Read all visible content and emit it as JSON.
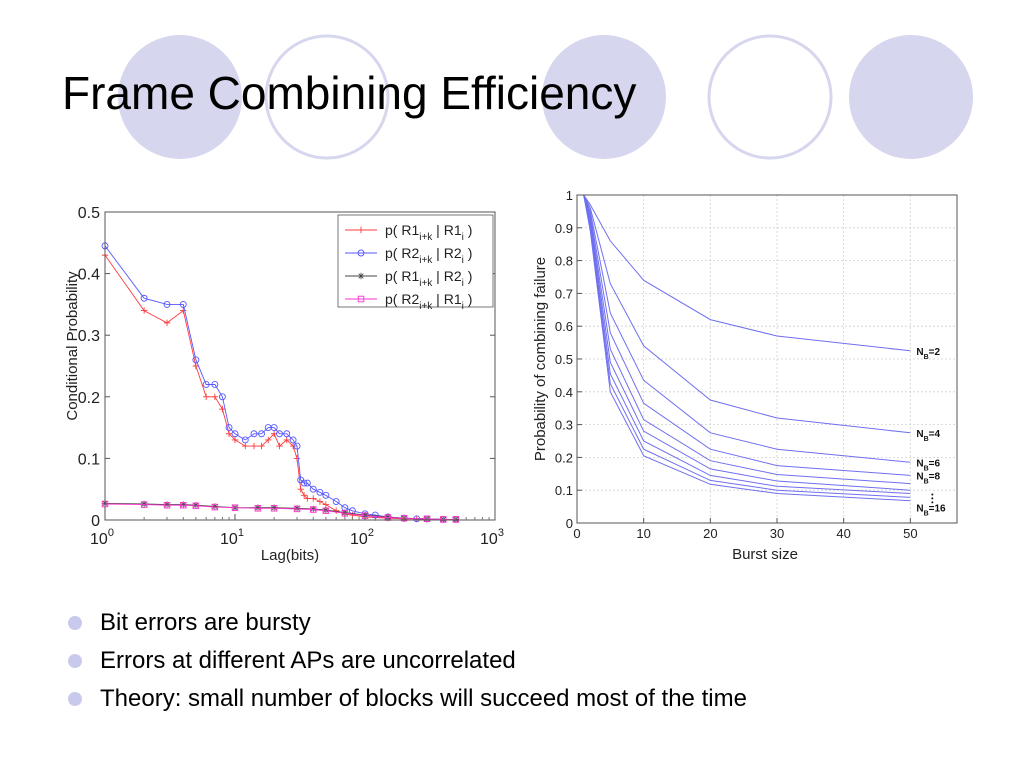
{
  "slide": {
    "title": "Frame Combining Efficiency",
    "accent_color": "#d4d4ee",
    "bullets": [
      "Bit errors are bursty",
      "Errors at different APs are uncorrelated",
      "Theory: small number of blocks will succeed most of the time"
    ]
  },
  "chart_data": [
    {
      "type": "line",
      "xscale": "log",
      "xlabel": "Lag(bits)",
      "ylabel": "Conditional Probability",
      "xlim": [
        1,
        1000
      ],
      "ylim": [
        0,
        0.5
      ],
      "xticks": [
        1,
        10,
        100,
        1000
      ],
      "xtick_labels": [
        [
          "10",
          "0"
        ],
        [
          "10",
          "1"
        ],
        [
          "10",
          "2"
        ],
        [
          "10",
          "3"
        ]
      ],
      "yticks": [
        0,
        0.1,
        0.2,
        0.3,
        0.4,
        0.5
      ],
      "ytick_labels": [
        "0",
        "0.1",
        "0.2",
        "0.3",
        "0.4",
        "0.5"
      ],
      "grid": false,
      "legend_position": "top-right",
      "legend": [
        [
          "p( R1",
          "i+k",
          " | R1",
          "i",
          " )"
        ],
        [
          "p( R2",
          "i+k",
          " | R2",
          "i",
          " )"
        ],
        [
          "p( R1",
          "i+k",
          " | R2",
          "i",
          " )"
        ],
        [
          "p( R2",
          "i+k",
          " | R1",
          "i",
          " )"
        ]
      ],
      "series": [
        {
          "color": "#ff3b3b",
          "marker": "plus",
          "x": [
            1,
            2,
            3,
            4,
            5,
            6,
            7,
            8,
            9,
            10,
            12,
            14,
            16,
            18,
            20,
            22,
            25,
            28,
            30,
            32,
            34,
            36,
            40,
            45,
            50,
            60,
            70,
            80,
            100,
            120,
            150,
            200,
            250,
            300,
            400,
            500
          ],
          "y": [
            0.43,
            0.34,
            0.32,
            0.34,
            0.25,
            0.2,
            0.2,
            0.18,
            0.14,
            0.13,
            0.12,
            0.12,
            0.12,
            0.13,
            0.14,
            0.12,
            0.13,
            0.12,
            0.1,
            0.05,
            0.04,
            0.035,
            0.035,
            0.03,
            0.025,
            0.015,
            0.01,
            0.008,
            0.005,
            0.004,
            0.003,
            0.002,
            0.002,
            0.001,
            0.001,
            0.001
          ]
        },
        {
          "color": "#5555ff",
          "marker": "circle",
          "x": [
            1,
            2,
            3,
            4,
            5,
            6,
            7,
            8,
            9,
            10,
            12,
            14,
            16,
            18,
            20,
            22,
            25,
            28,
            30,
            32,
            34,
            36,
            40,
            45,
            50,
            60,
            70,
            80,
            100,
            120,
            150,
            200,
            250,
            300,
            400,
            500
          ],
          "y": [
            0.445,
            0.36,
            0.35,
            0.35,
            0.26,
            0.22,
            0.22,
            0.2,
            0.15,
            0.14,
            0.13,
            0.14,
            0.14,
            0.15,
            0.15,
            0.14,
            0.14,
            0.13,
            0.12,
            0.065,
            0.06,
            0.06,
            0.05,
            0.045,
            0.04,
            0.03,
            0.02,
            0.015,
            0.01,
            0.008,
            0.005,
            0.003,
            0.002,
            0.002,
            0.001,
            0.001
          ]
        },
        {
          "color": "#444444",
          "marker": "star",
          "x": [
            1,
            2,
            3,
            4,
            5,
            7,
            10,
            15,
            20,
            30,
            40,
            50,
            70,
            100,
            150,
            200,
            300,
            400,
            500
          ],
          "y": [
            0.027,
            0.026,
            0.025,
            0.025,
            0.024,
            0.022,
            0.02,
            0.02,
            0.02,
            0.019,
            0.018,
            0.016,
            0.012,
            0.008,
            0.005,
            0.003,
            0.002,
            0.001,
            0.001
          ]
        },
        {
          "color": "#ff33cc",
          "marker": "square",
          "x": [
            1,
            2,
            3,
            4,
            5,
            7,
            10,
            15,
            20,
            30,
            40,
            50,
            70,
            100,
            150,
            200,
            300,
            400,
            500
          ],
          "y": [
            0.026,
            0.025,
            0.024,
            0.024,
            0.023,
            0.021,
            0.02,
            0.019,
            0.019,
            0.018,
            0.017,
            0.015,
            0.011,
            0.007,
            0.004,
            0.003,
            0.002,
            0.001,
            0.001
          ]
        }
      ]
    },
    {
      "type": "line",
      "xlabel": "Burst size",
      "ylabel": "Probability of combining failure",
      "xlim": [
        0,
        57
      ],
      "ylim": [
        0,
        1
      ],
      "xticks": [
        0,
        10,
        20,
        30,
        40,
        50
      ],
      "xtick_labels": [
        "0",
        "10",
        "20",
        "30",
        "40",
        "50"
      ],
      "yticks": [
        0,
        0.1,
        0.2,
        0.3,
        0.4,
        0.5,
        0.6,
        0.7,
        0.8,
        0.9,
        1
      ],
      "ytick_labels": [
        "0",
        "0.1",
        "0.2",
        "0.3",
        "0.4",
        "0.5",
        "0.6",
        "0.7",
        "0.8",
        "0.9",
        "1"
      ],
      "grid": true,
      "color": "#6f6ff0",
      "x": [
        1,
        2,
        5,
        10,
        20,
        30,
        50
      ],
      "series": [
        {
          "y": [
            1,
            0.97,
            0.86,
            0.74,
            0.62,
            0.57,
            0.525
          ]
        },
        {
          "y": [
            1,
            0.96,
            0.73,
            0.54,
            0.375,
            0.32,
            0.275
          ]
        },
        {
          "y": [
            1,
            0.95,
            0.64,
            0.435,
            0.275,
            0.225,
            0.185
          ]
        },
        {
          "y": [
            1,
            0.94,
            0.58,
            0.365,
            0.225,
            0.175,
            0.145
          ]
        },
        {
          "y": [
            1,
            0.93,
            0.53,
            0.315,
            0.19,
            0.148,
            0.12
          ]
        },
        {
          "y": [
            1,
            0.92,
            0.49,
            0.28,
            0.165,
            0.128,
            0.1
          ]
        },
        {
          "y": [
            1,
            0.91,
            0.455,
            0.25,
            0.145,
            0.112,
            0.09
          ]
        },
        {
          "y": [
            1,
            0.9,
            0.425,
            0.225,
            0.13,
            0.1,
            0.078
          ]
        },
        {
          "y": [
            1,
            0.89,
            0.4,
            0.205,
            0.118,
            0.09,
            0.068
          ]
        }
      ],
      "annotations": [
        {
          "label": "N",
          "sub": "B",
          "rest": "=2",
          "y": 0.525
        },
        {
          "label": "N",
          "sub": "B",
          "rest": "=4",
          "y": 0.275
        },
        {
          "label": "N",
          "sub": "B",
          "rest": "=6",
          "y": 0.185
        },
        {
          "label": "N",
          "sub": "B",
          "rest": "=8",
          "y": 0.145
        },
        {
          "label": "N",
          "sub": "B",
          "rest": "=16",
          "y": 0.048
        }
      ]
    }
  ]
}
